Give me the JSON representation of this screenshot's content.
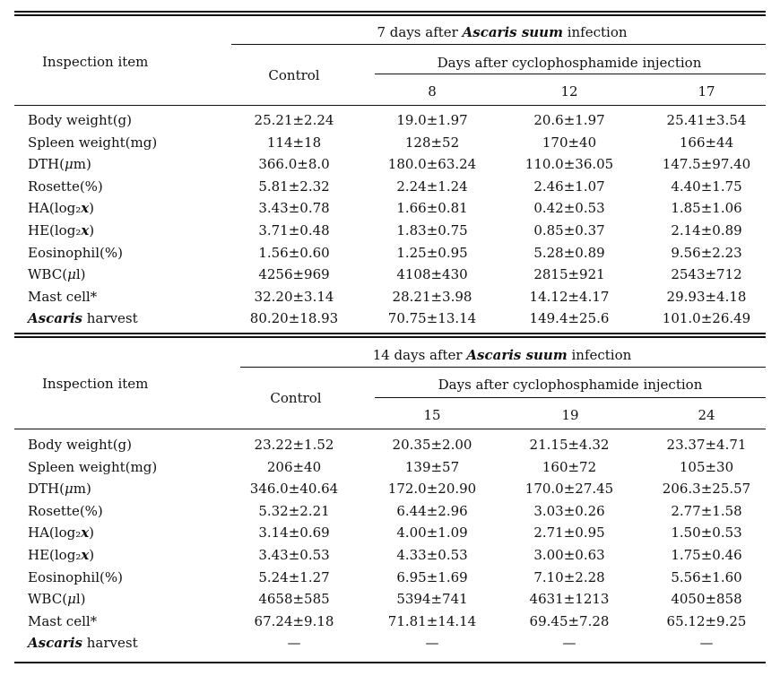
{
  "panels": [
    {
      "title": {
        "pre": "7 days after ",
        "species": "Ascaris suum",
        "post": " infection"
      },
      "header_item": "Inspection item",
      "header_control": "Control",
      "header_group": "Days after cyclophosphamide injection",
      "days": [
        "8",
        "12",
        "17"
      ],
      "rows": [
        {
          "label": "Body weight(g)",
          "values": [
            "25.21±2.24",
            "19.0±1.97",
            "20.6±1.97",
            "25.41±3.54"
          ]
        },
        {
          "label": "Spleen weight(mg)",
          "values": [
            "114±18",
            "128±52",
            "170±40",
            "166±44"
          ]
        },
        {
          "label": "DTH(μm)",
          "values": [
            "366.0±8.0",
            "180.0±63.24",
            "110.0±36.05",
            "147.5±97.40"
          ]
        },
        {
          "label": "Rosette(%)",
          "values": [
            "5.81±2.32",
            "2.24±1.24",
            "2.46±1.07",
            "4.40±1.75"
          ]
        },
        {
          "label": "HA(log₂x)",
          "values": [
            "3.43±0.78",
            "1.66±0.81",
            "0.42±0.53",
            "1.85±1.06"
          ]
        },
        {
          "label": "HE(log₂x)",
          "values": [
            "3.71±0.48",
            "1.83±0.75",
            "0.85±0.37",
            "2.14±0.89"
          ]
        },
        {
          "label": "Eosinophil(%)",
          "values": [
            "1.56±0.60",
            "1.25±0.95",
            "5.28±0.89",
            "9.56±2.23"
          ]
        },
        {
          "label": "WBC(μl)",
          "values": [
            "4256±969",
            "4108±430",
            "2815±921",
            "2543±712"
          ]
        },
        {
          "label": "Mast cell*",
          "values": [
            "32.20±3.14",
            "28.21±3.98",
            "14.12±4.17",
            "29.93±4.18"
          ]
        },
        {
          "label": "Ascaris harvest",
          "values": [
            "80.20±18.93",
            "70.75±13.14",
            "149.4±25.6",
            "101.0±26.49"
          ]
        }
      ]
    },
    {
      "title": {
        "pre": "14 days after ",
        "species": "Ascaris suum",
        "post": " infection"
      },
      "header_item": "Inspection item",
      "header_control": "Control",
      "header_group": "Days after cyclophosphamide injection",
      "days": [
        "15",
        "19",
        "24"
      ],
      "rows": [
        {
          "label": "Body weight(g)",
          "values": [
            "23.22±1.52",
            "20.35±2.00",
            "21.15±4.32",
            "23.37±4.71"
          ]
        },
        {
          "label": "Spleen weight(mg)",
          "values": [
            "206±40",
            "139±57",
            "160±72",
            "105±30"
          ]
        },
        {
          "label": "DTH(μm)",
          "values": [
            "346.0±40.64",
            "172.0±20.90",
            "170.0±27.45",
            "206.3±25.57"
          ]
        },
        {
          "label": "Rosette(%)",
          "values": [
            "5.32±2.21",
            "6.44±2.96",
            "3.03±0.26",
            "2.77±1.58"
          ]
        },
        {
          "label": "HA(log₂x)",
          "values": [
            "3.14±0.69",
            "4.00±1.09",
            "2.71±0.95",
            "1.50±0.53"
          ]
        },
        {
          "label": "HE(log₂x)",
          "values": [
            "3.43±0.53",
            "4.33±0.53",
            "3.00±0.63",
            "1.75±0.46"
          ]
        },
        {
          "label": "Eosinophil(%)",
          "values": [
            "5.24±1.27",
            "6.95±1.69",
            "7.10±2.28",
            "5.56±1.60"
          ]
        },
        {
          "label": "WBC(μl)",
          "values": [
            "4658±585",
            "5394±741",
            "4631±1213",
            "4050±858"
          ]
        },
        {
          "label": "Mast cell*",
          "values": [
            "67.24±9.18",
            "71.81±14.14",
            "69.45±7.28",
            "65.12±9.25"
          ]
        },
        {
          "label": "Ascaris harvest",
          "values": [
            "—",
            "—",
            "—",
            "—"
          ]
        }
      ]
    }
  ]
}
